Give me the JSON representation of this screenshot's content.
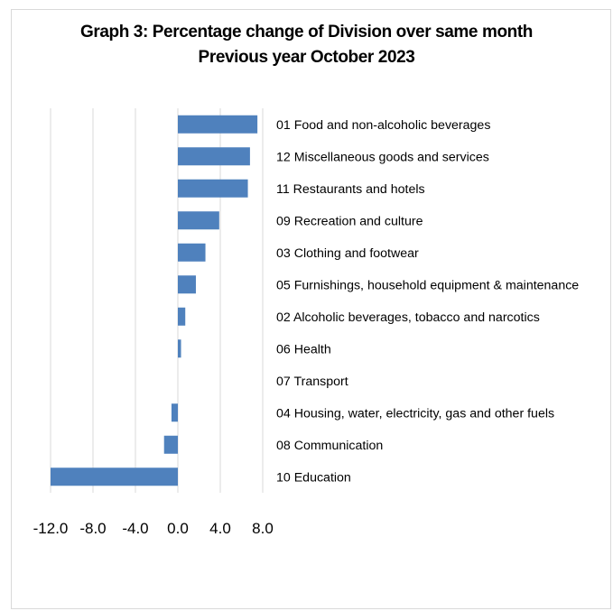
{
  "chart_data": {
    "type": "bar",
    "orientation": "horizontal",
    "title": "Graph 3: Percentage change of Division over same month",
    "subtitle": "Previous year October 2023",
    "categories": [
      "01 Food and non-alcoholic beverages",
      "12 Miscellaneous goods and services",
      "11 Restaurants and hotels",
      "09 Recreation and culture",
      "03 Clothing and footwear",
      "05 Furnishings, household equipment & maintenance",
      "02 Alcoholic beverages, tobacco and narcotics",
      "06 Health",
      "07 Transport",
      "04 Housing, water, electricity, gas and other fuels",
      "08 Communication",
      "10 Education"
    ],
    "values": [
      7.5,
      6.8,
      6.6,
      3.9,
      2.6,
      1.7,
      0.7,
      0.3,
      0.0,
      -0.6,
      -1.3,
      -12.0
    ],
    "xlim": [
      -12.0,
      8.0
    ],
    "xticks": [
      "-12.0",
      "-8.0",
      "-4.0",
      "0.0",
      "4.0",
      "8.0"
    ],
    "xtick_values": [
      -12,
      -8,
      -4,
      0,
      4,
      8
    ],
    "grid": true,
    "legend": "none",
    "bar_color": "#4f81bd",
    "grid_color": "#d9d9d9"
  }
}
